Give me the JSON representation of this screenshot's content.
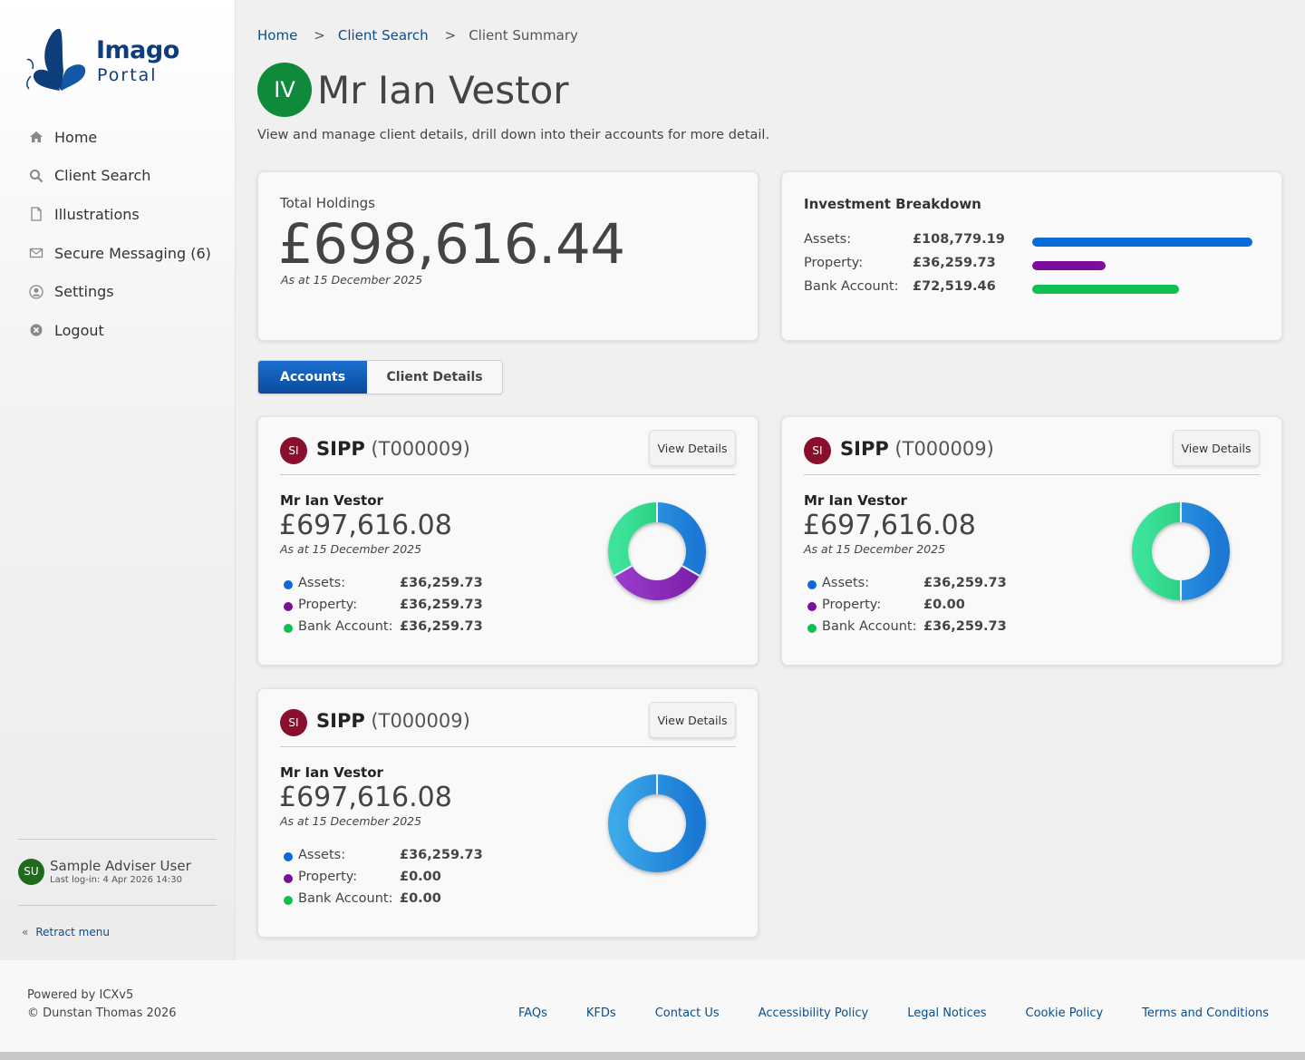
{
  "brand": {
    "word1": "Imago",
    "word2": "Portal"
  },
  "nav": [
    {
      "label": "Home",
      "icon": "home-icon"
    },
    {
      "label": "Client Search",
      "icon": "search-icon"
    },
    {
      "label": "Illustrations",
      "icon": "document-icon"
    },
    {
      "label": "Secure Messaging (6)",
      "icon": "envelope-icon"
    },
    {
      "label": "Settings",
      "icon": "user-circle-icon"
    },
    {
      "label": "Logout",
      "icon": "close-circle-icon"
    }
  ],
  "user": {
    "initials": "SU",
    "name": "Sample Adviser User",
    "last_login": "Last log-in: 4 Apr 2026 14:30"
  },
  "retract_label": "Retract menu",
  "breadcrumb": {
    "home": "Home",
    "search": "Client Search",
    "current": "Client Summary",
    "sep": ">"
  },
  "client": {
    "initials": "IV",
    "name": "Mr Ian Vestor"
  },
  "subtitle": "View and manage client details, drill down into their accounts for more detail.",
  "holdings": {
    "label": "Total Holdings",
    "value": "£698,616.44",
    "as_at": "As at 15 December 2025"
  },
  "breakdown": {
    "title": "Investment Breakdown",
    "rows": [
      {
        "label": "Assets:",
        "value": "£108,779.19",
        "fraction": 1.0,
        "color": "#0a6ad6"
      },
      {
        "label": "Property:",
        "value": "£36,259.73",
        "fraction": 0.335,
        "color": "#7b0f9c"
      },
      {
        "label": "Bank Account:",
        "value": "£72,519.46",
        "fraction": 0.667,
        "color": "#0fbf52"
      }
    ]
  },
  "tabs": {
    "accounts": "Accounts",
    "client_details": "Client Details"
  },
  "accounts": [
    {
      "icon": "SI",
      "name": "SIPP",
      "ref": "(T000009)",
      "button": "View Details",
      "client": "Mr Ian Vestor",
      "value": "£697,616.08",
      "as_at": "As at 15 December 2025",
      "legend": [
        {
          "label": "Assets:",
          "value": "£36,259.73"
        },
        {
          "label": "Property:",
          "value": "£36,259.73"
        },
        {
          "label": "Bank Account:",
          "value": "£36,259.73"
        }
      ],
      "donut": [
        36259.73,
        36259.73,
        36259.73
      ]
    },
    {
      "icon": "SI",
      "name": "SIPP",
      "ref": "(T000009)",
      "button": "View Details",
      "client": "Mr Ian Vestor",
      "value": "£697,616.08",
      "as_at": "As at 15 December 2025",
      "legend": [
        {
          "label": "Assets:",
          "value": "£36,259.73"
        },
        {
          "label": "Property:",
          "value": "£0.00"
        },
        {
          "label": "Bank Account:",
          "value": "£36,259.73"
        }
      ],
      "donut": [
        36259.73,
        0,
        36259.73
      ]
    },
    {
      "icon": "SI",
      "name": "SIPP",
      "ref": "(T000009)",
      "button": "View Details",
      "client": "Mr Ian Vestor",
      "value": "£697,616.08",
      "as_at": "As at 15 December 2025",
      "legend": [
        {
          "label": "Assets:",
          "value": "£36,259.73"
        },
        {
          "label": "Property:",
          "value": "£0.00"
        },
        {
          "label": "Bank Account:",
          "value": "£0.00"
        }
      ],
      "donut": [
        36259.73,
        0,
        0
      ]
    }
  ],
  "colors": {
    "assets": "#0a6ad6",
    "property": "#7b0f9c",
    "bank": "#0fbf52",
    "brand": "#0d3d7a",
    "link": "#0b4d8c"
  },
  "footer": {
    "powered": "Powered by ICXv5",
    "copyright": "© Dunstan Thomas 2026",
    "links": [
      "FAQs",
      "KFDs",
      "Contact Us",
      "Accessibility Policy",
      "Legal Notices",
      "Cookie Policy",
      "Terms and Conditions"
    ]
  }
}
